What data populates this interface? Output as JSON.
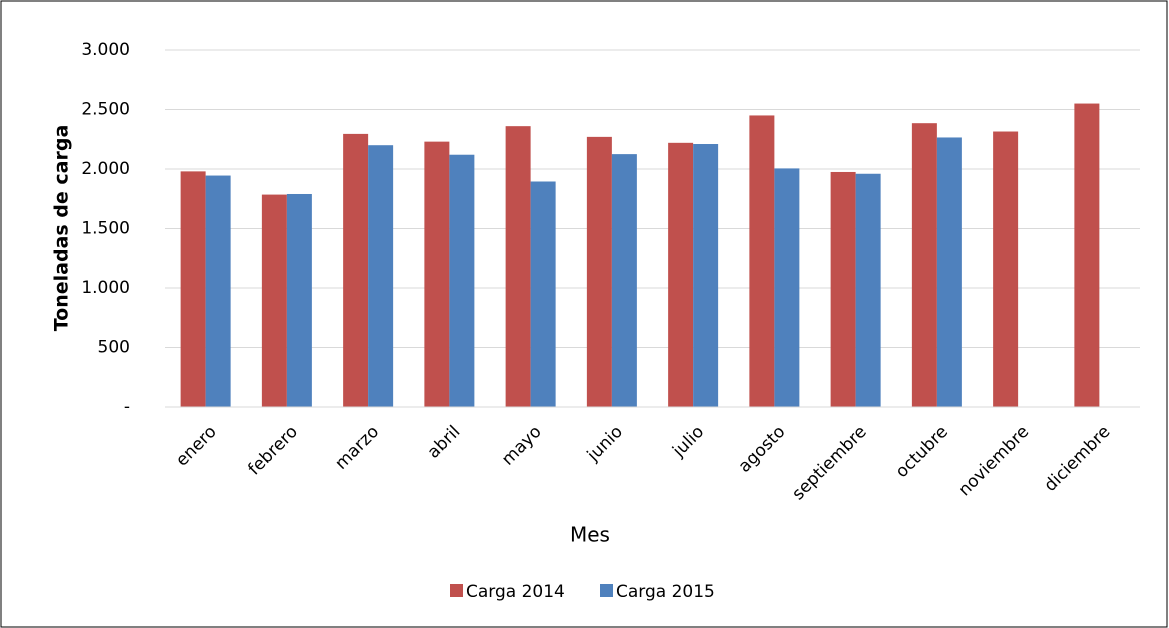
{
  "chart_data": {
    "type": "bar",
    "x_label": "Mes",
    "y_label": "Toneladas de carga",
    "categories": [
      "enero",
      "febrero",
      "marzo",
      "abril",
      "mayo",
      "junio",
      "julio",
      "agosto",
      "septiembre",
      "octubre",
      "noviembre",
      "diciembre"
    ],
    "series": [
      {
        "name": "Carga 2014",
        "color": "#c0504d",
        "values": [
          1980,
          1785,
          2295,
          2230,
          2360,
          2270,
          2220,
          2450,
          1975,
          2385,
          2315,
          2550
        ]
      },
      {
        "name": "Carga 2015",
        "color": "#4f81bd",
        "values": [
          1945,
          1790,
          2200,
          2120,
          1895,
          2125,
          2210,
          2005,
          1960,
          2265,
          null,
          null
        ]
      }
    ],
    "ylim": [
      0,
      3000
    ],
    "yticks": [
      {
        "value": 0,
        "label": "-"
      },
      500,
      {
        "value": 1000,
        "label": "1.000"
      },
      {
        "value": 1500,
        "label": "1.500"
      },
      {
        "value": 2000,
        "label": "2.000"
      },
      {
        "value": 2500,
        "label": "2.500"
      },
      {
        "value": 3000,
        "label": "3.000"
      }
    ],
    "grid": true,
    "legend": "bottom"
  }
}
